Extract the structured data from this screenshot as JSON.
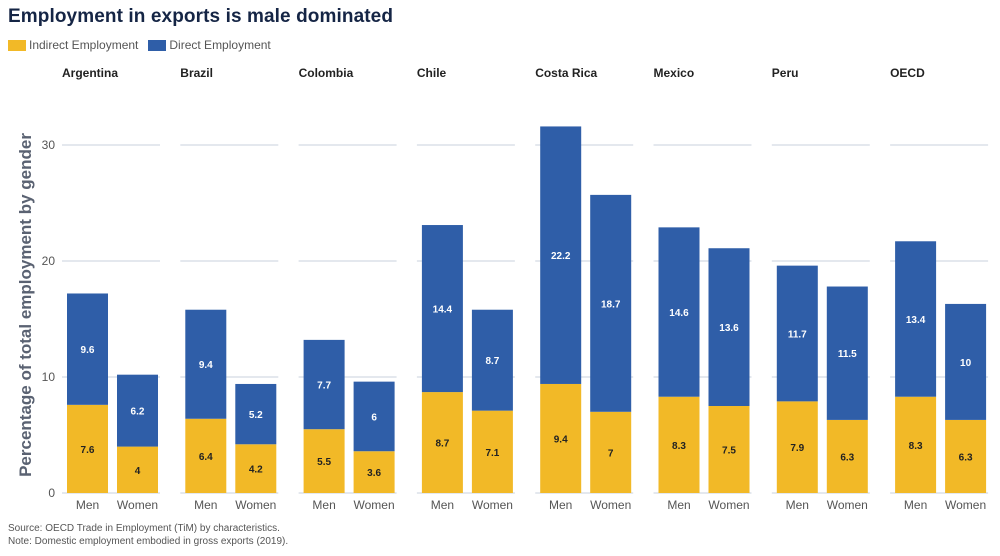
{
  "chart_data": {
    "type": "bar",
    "stacked": true,
    "title": "Employment in exports is male dominated",
    "ylabel": "Percentage of total employment by gender",
    "xlabel": "",
    "ylim": [
      0,
      33
    ],
    "yticks": [
      0,
      10,
      20,
      30
    ],
    "legend_position": "top-left",
    "colors": {
      "indirect": "#F2B927",
      "direct": "#2F5EA8",
      "grid": "#b8c3d3"
    },
    "legend": [
      {
        "key": "indirect",
        "label": "Indirect Employment"
      },
      {
        "key": "direct",
        "label": "Direct Employment"
      }
    ],
    "categories": [
      "Men",
      "Women"
    ],
    "panels": [
      {
        "name": "Argentina",
        "indirect": [
          7.6,
          4
        ],
        "direct": [
          9.6,
          6.2
        ]
      },
      {
        "name": "Brazil",
        "indirect": [
          6.4,
          4.2
        ],
        "direct": [
          9.4,
          5.2
        ]
      },
      {
        "name": "Colombia",
        "indirect": [
          5.5,
          3.6
        ],
        "direct": [
          7.7,
          6
        ]
      },
      {
        "name": "Chile",
        "indirect": [
          8.7,
          7.1
        ],
        "direct": [
          14.4,
          8.7
        ]
      },
      {
        "name": "Costa Rica",
        "indirect": [
          9.4,
          7
        ],
        "direct": [
          22.2,
          18.7
        ]
      },
      {
        "name": "Mexico",
        "indirect": [
          8.3,
          7.5
        ],
        "direct": [
          14.6,
          13.6
        ]
      },
      {
        "name": "Peru",
        "indirect": [
          7.9,
          6.3
        ],
        "direct": [
          11.7,
          11.5
        ]
      },
      {
        "name": "OECD",
        "indirect": [
          8.3,
          6.3
        ],
        "direct": [
          13.4,
          10
        ]
      }
    ]
  },
  "notes": {
    "source": "Source: OECD Trade in Employment (TiM) by characteristics.",
    "note": "Note: Domestic employment embodied in gross exports (2019)."
  }
}
